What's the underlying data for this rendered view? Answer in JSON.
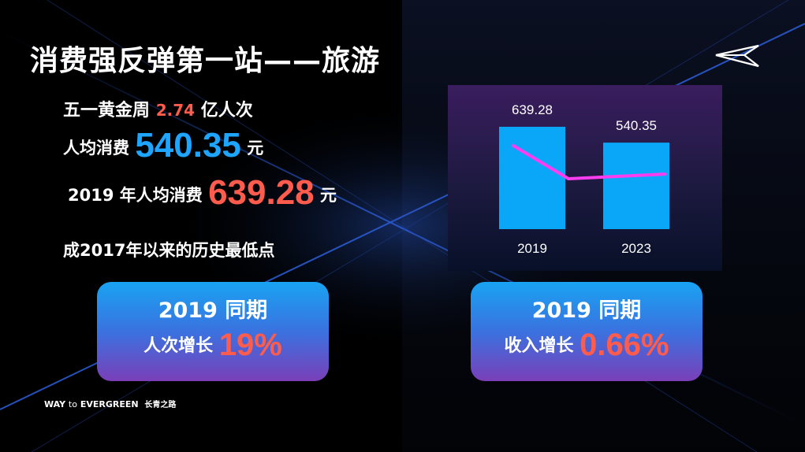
{
  "title": "消费强反弹第一站——旅游",
  "stats": {
    "line1_prefix": "五一黄金周",
    "line1_value": "2.74",
    "line1_suffix": "亿人次",
    "line2_prefix": "人均消费",
    "line2_value": "540.35",
    "line2_suffix": "元",
    "line3_prefix": "2019 年人均消费",
    "line3_value": "639.28",
    "line3_suffix": "元",
    "line4": "成2017年以来的历史最低点"
  },
  "cards": [
    {
      "top": "2019 同期",
      "label": "人次增长",
      "value": "19%"
    },
    {
      "top": "2019 同期",
      "label": "收入增长",
      "value": "0.66%"
    }
  ],
  "footer": {
    "way": "WAY",
    "to": "to",
    "evergreen": "EVERGREEN",
    "cn": "长青之路"
  },
  "colors": {
    "accent_red": "#ff5c4d",
    "accent_blue": "#1ea5ff",
    "bar": "#0aa6f7",
    "line": "#ff3df0"
  },
  "chart_data": {
    "type": "bar",
    "categories": [
      "2019",
      "2023"
    ],
    "values": [
      639.28,
      540.35
    ],
    "data_labels": [
      "639.28",
      "540.35"
    ],
    "overlay_line": true,
    "ylim": [
      0,
      700
    ],
    "grid": false,
    "legend": "none"
  }
}
